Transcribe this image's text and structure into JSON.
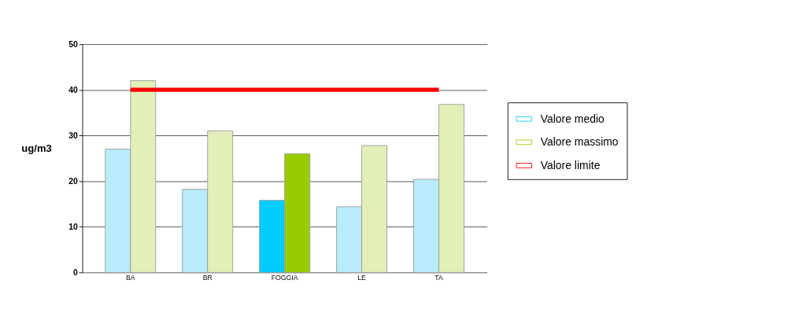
{
  "chart_data": {
    "type": "bar",
    "ylabel": "ug/m3",
    "categories": [
      "BA",
      "BR",
      "FOGGIA",
      "LE",
      "TA"
    ],
    "series": [
      {
        "name": "Valore medio",
        "color": "#00ccff",
        "colors": [
          "#b8ecfb",
          "#b8ecfb",
          "#00ccff",
          "#b8ecfb",
          "#b8ecfb"
        ],
        "values": [
          27,
          18.2,
          15.8,
          14.4,
          20.4
        ]
      },
      {
        "name": "Valore massimo",
        "color": "#99cc00",
        "colors": [
          "#e2efb8",
          "#e2efb8",
          "#99cc00",
          "#e2efb8",
          "#e2efb8"
        ],
        "values": [
          42,
          31,
          26,
          27.8,
          36.8
        ]
      }
    ],
    "ylim": [
      0,
      50
    ],
    "yticks": [
      0,
      10,
      20,
      30,
      40,
      50
    ],
    "ref_lines": [
      {
        "axis": "y",
        "value": 40,
        "label": "Valore limite",
        "color": "#ff0000"
      }
    ],
    "grid": "y",
    "legend": "right"
  }
}
